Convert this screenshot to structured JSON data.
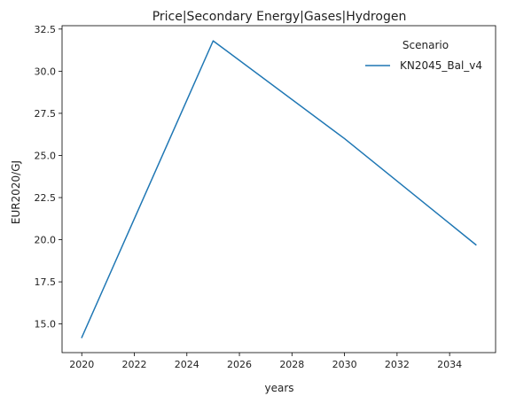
{
  "chart_data": {
    "type": "line",
    "title": "Price|Secondary Energy|Gases|Hydrogen",
    "xlabel": "years",
    "ylabel": "EUR2020/GJ",
    "xlim": [
      2019.25,
      2035.75
    ],
    "ylim": [
      13.3,
      32.7
    ],
    "xticks": [
      2020,
      2022,
      2024,
      2026,
      2028,
      2030,
      2032,
      2034
    ],
    "yticks": [
      15.0,
      17.5,
      20.0,
      22.5,
      25.0,
      27.5,
      30.0,
      32.5
    ],
    "x": [
      2020,
      2025,
      2030,
      2035
    ],
    "series": [
      {
        "name": "KN2045_Bal_v4",
        "values": [
          14.2,
          31.8,
          26.0,
          19.7
        ],
        "color": "#1f77b4"
      }
    ],
    "legend": {
      "title": "Scenario",
      "placement": "top-right"
    },
    "grid": false
  }
}
